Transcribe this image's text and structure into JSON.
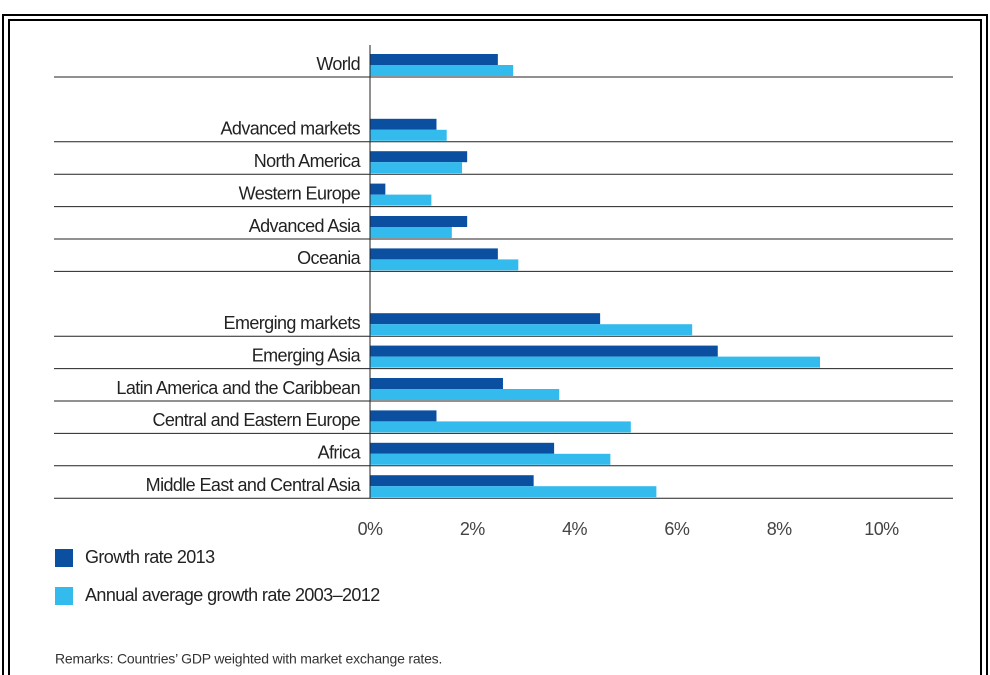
{
  "chart_data": {
    "type": "hbar",
    "categories": [
      "World",
      null,
      "Advanced markets",
      "North America",
      "Western Europe",
      "Advanced Asia",
      "Oceania",
      null,
      "Emerging markets",
      "Emerging Asia",
      "Latin America and the Caribbean",
      "Central and Eastern Europe",
      "Africa",
      "Middle East and Central Asia"
    ],
    "series": [
      {
        "name": "Growth rate 2013",
        "color": "#0b4fa0",
        "values": [
          2.5,
          null,
          1.3,
          1.9,
          0.3,
          1.9,
          2.5,
          null,
          4.5,
          6.8,
          2.6,
          1.3,
          3.6,
          3.2
        ]
      },
      {
        "name": "Annual average growth rate 2003–2012",
        "color": "#33bbee",
        "values": [
          2.8,
          null,
          1.5,
          1.8,
          1.2,
          1.6,
          2.9,
          null,
          6.3,
          8.8,
          3.7,
          5.1,
          4.7,
          5.6
        ]
      }
    ],
    "xlim": [
      0,
      11.4
    ],
    "xticks": [
      {
        "value": 0,
        "label": "0%"
      },
      {
        "value": 2,
        "label": "2%"
      },
      {
        "value": 4,
        "label": "4%"
      },
      {
        "value": 6,
        "label": "6%"
      },
      {
        "value": 8,
        "label": "8%"
      },
      {
        "value": 10,
        "label": "10%"
      }
    ],
    "remarks": "Remarks: Countries’ GDP weighted with market exchange rates."
  }
}
